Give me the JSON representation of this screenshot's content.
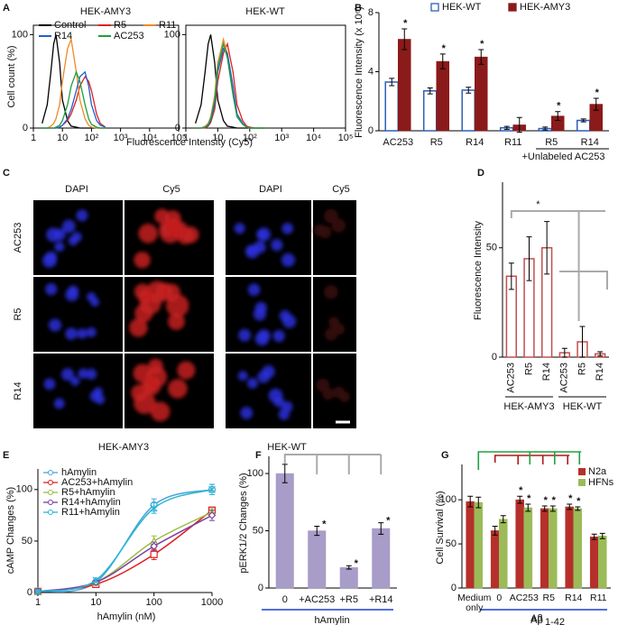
{
  "chart_data": [
    {
      "panel": "A",
      "type": "line",
      "title": "HEK-AMY3",
      "ylabel": "Cell count (%)",
      "xlabel": "Fluorescence Intensity (Cy5)",
      "xlog": true,
      "frame": true,
      "legend": "top",
      "xlim": [
        1,
        100000
      ],
      "xticks": [
        1,
        10,
        {
          "value": 100,
          "label": "10²"
        },
        {
          "value": 1000,
          "label": "10³"
        },
        {
          "value": 10000,
          "label": "10⁴"
        },
        {
          "value": 100000,
          "label": "10⁵"
        }
      ],
      "ylim": [
        0,
        110
      ],
      "yticks": [
        0,
        100
      ],
      "x": [
        2,
        3,
        4,
        5,
        6,
        8,
        10,
        15,
        20,
        30,
        40,
        60,
        80,
        100,
        150,
        200,
        300
      ],
      "series": [
        {
          "name": "Control",
          "color": "#000000",
          "values": [
            5,
            25,
            60,
            90,
            100,
            70,
            30,
            8,
            2,
            1,
            0,
            0,
            0,
            0,
            0,
            0,
            0
          ]
        },
        {
          "name": "R5",
          "color": "#e0201e",
          "values": [
            0,
            0,
            0,
            0,
            0,
            1,
            3,
            8,
            15,
            30,
            45,
            55,
            50,
            40,
            15,
            5,
            1
          ]
        },
        {
          "name": "R11",
          "color": "#f08a24",
          "values": [
            0,
            0,
            2,
            5,
            10,
            25,
            50,
            85,
            95,
            60,
            30,
            10,
            3,
            1,
            0,
            0,
            0
          ]
        },
        {
          "name": "R14",
          "color": "#1f5fd0",
          "values": [
            0,
            0,
            0,
            0,
            0,
            1,
            3,
            10,
            20,
            40,
            55,
            60,
            45,
            25,
            8,
            3,
            1
          ]
        },
        {
          "name": "AC253",
          "color": "#1aa040",
          "values": [
            0,
            0,
            0,
            0,
            1,
            3,
            8,
            25,
            45,
            60,
            50,
            25,
            10,
            4,
            1,
            0,
            0
          ]
        }
      ]
    },
    {
      "panel": null,
      "type": "line",
      "title": "HEK-WT",
      "xlog": true,
      "frame": true,
      "xlim": [
        1,
        100000
      ],
      "xticks": [
        1,
        10,
        {
          "value": 100,
          "label": "10²"
        },
        {
          "value": 1000,
          "label": "10³"
        },
        {
          "value": 10000,
          "label": "10⁴"
        },
        {
          "value": 100000,
          "label": "10⁵"
        }
      ],
      "ylim": [
        0,
        110
      ],
      "yticks": [
        0,
        100
      ],
      "x": [
        2,
        3,
        4,
        5,
        6,
        8,
        10,
        15,
        20,
        30,
        40,
        60,
        80,
        100,
        150,
        200,
        300
      ],
      "series": [
        {
          "name": "Control",
          "color": "#000000",
          "values": [
            5,
            25,
            60,
            90,
            100,
            70,
            30,
            8,
            2,
            1,
            0,
            0,
            0,
            0,
            0,
            0,
            0
          ]
        },
        {
          "name": "R5",
          "color": "#e0201e",
          "values": [
            0,
            0,
            0,
            2,
            6,
            20,
            50,
            80,
            90,
            60,
            25,
            8,
            2,
            1,
            0,
            0,
            0
          ]
        },
        {
          "name": "R11",
          "color": "#f08a24",
          "values": [
            0,
            0,
            2,
            5,
            12,
            35,
            70,
            95,
            80,
            40,
            15,
            5,
            1,
            0,
            0,
            0,
            0
          ]
        },
        {
          "name": "R14",
          "color": "#1f5fd0",
          "values": [
            0,
            0,
            1,
            3,
            8,
            25,
            60,
            85,
            80,
            45,
            15,
            5,
            1,
            0,
            0,
            0,
            0
          ]
        },
        {
          "name": "AC253",
          "color": "#1aa040",
          "values": [
            0,
            0,
            1,
            4,
            10,
            30,
            65,
            90,
            75,
            35,
            12,
            4,
            1,
            0,
            0,
            0,
            0
          ]
        }
      ]
    },
    {
      "panel": "B",
      "type": "bar",
      "ylabel": "Fluorescence Intensity (x 10⁶)",
      "legend": "top",
      "categories": [
        "AC253",
        "R5",
        "R14",
        "R11",
        "R5",
        "R14"
      ],
      "group_label": "+Unlabeled AC253",
      "ylim": [
        0,
        8
      ],
      "yticks": [
        0,
        4,
        8
      ],
      "series": [
        {
          "name": "HEK-WT",
          "color": "#2e5fb5",
          "fill": "#ffffff",
          "values": [
            3.3,
            2.7,
            2.75,
            0.2,
            0.15,
            0.7
          ],
          "errors": [
            0.25,
            0.2,
            0.2,
            0.1,
            0.1,
            0.1
          ]
        },
        {
          "name": "HEK-AMY3",
          "color": "#8b1a1a",
          "values": [
            6.2,
            4.7,
            5.0,
            0.4,
            1.0,
            1.8
          ],
          "errors": [
            0.7,
            0.5,
            0.5,
            0.5,
            0.3,
            0.4
          ],
          "stars": [
            "*",
            "*",
            "*",
            null,
            "*",
            "*"
          ],
          "star_color": "#000000"
        }
      ]
    },
    {
      "panel": "D",
      "type": "bar",
      "ylabel": "Fluorescence Intensity",
      "rotate_labels": true,
      "categories": [
        "AC253",
        "R5",
        "R14",
        "AC253",
        "R5",
        "R14"
      ],
      "groups": [
        "HEK-AMY3",
        "HEK-WT"
      ],
      "annotation": "*",
      "ylim": [
        0,
        80
      ],
      "yticks": [
        0,
        50
      ],
      "series": [
        {
          "color": "#c0504d",
          "fill": "#ffffff",
          "values": [
            37,
            45,
            50,
            2,
            7,
            1.5
          ],
          "errors": [
            6,
            10,
            12,
            2,
            7,
            1
          ]
        }
      ]
    },
    {
      "panel": "E",
      "type": "line",
      "ylabel": "cAMP Changes (%)",
      "xlabel": "hAmylin (nM)",
      "xlog": true,
      "smooth": true,
      "legend": "top-left",
      "xlim": [
        1,
        1000
      ],
      "xticks": [
        1,
        10,
        100,
        1000
      ],
      "ylim": [
        0,
        120
      ],
      "yticks": [
        0,
        50,
        100
      ],
      "x": [
        1,
        10,
        100,
        1000
      ],
      "series": [
        {
          "name": "hAmylin",
          "color": "#4aa3d8",
          "marker": "circle",
          "values": [
            1,
            10,
            85,
            100
          ],
          "errors": [
            0.5,
            2,
            6,
            5
          ]
        },
        {
          "name": "AC253+hAmylin",
          "color": "#e02020",
          "marker": "square",
          "values": [
            1,
            8,
            37,
            80
          ],
          "errors": [
            0.5,
            2,
            5,
            3
          ]
        },
        {
          "name": "R5+hAmylin",
          "color": "#9bbb3c",
          "marker": "triangle",
          "values": [
            1,
            10,
            50,
            78
          ],
          "errors": [
            0.5,
            2,
            5,
            4
          ]
        },
        {
          "name": "R14+hAmylin",
          "color": "#7b3fa0",
          "marker": "diamond",
          "values": [
            1,
            10,
            45,
            75
          ],
          "errors": [
            0.5,
            2,
            4,
            5
          ]
        },
        {
          "name": "R11+hAmylin",
          "color": "#2ab5d5",
          "marker": "x",
          "values": [
            1,
            12,
            82,
            100
          ],
          "errors": [
            0.5,
            2,
            5,
            5
          ]
        }
      ]
    },
    {
      "panel": "F",
      "type": "bar",
      "ylabel": "pERK1/2 Changes (%)",
      "xlabel": "hAmylin",
      "categories": [
        "0",
        "+AC253",
        "+R5",
        "+R14"
      ],
      "ylim": [
        0,
        115
      ],
      "yticks": [
        0,
        50,
        100
      ],
      "series": [
        {
          "color": "#a89cc8",
          "values": [
            100,
            50,
            18,
            52
          ],
          "errors": [
            8,
            4,
            1.5,
            5
          ],
          "stars": [
            null,
            "*",
            "*",
            "*"
          ],
          "star_color": "#000000"
        }
      ]
    },
    {
      "panel": "G",
      "type": "bar",
      "ylabel": "Cell Survival (%)",
      "xlabel": "Aβ",
      "xlabel_sub": "1-42",
      "legend": "top-right",
      "wrap_labels": true,
      "categories": [
        "Medium only",
        "0",
        "AC253",
        "R5",
        "R14",
        "R11"
      ],
      "ylim": [
        0,
        140
      ],
      "yticks": [
        0,
        50,
        100
      ],
      "series": [
        {
          "name": "N2a",
          "color": "#b5302a",
          "values": [
            98,
            65,
            100,
            90,
            92,
            58
          ],
          "errors": [
            6,
            5,
            4,
            3,
            3,
            3
          ],
          "stars": [
            null,
            null,
            "*",
            "*",
            "*",
            null
          ],
          "star_color": "#d01010"
        },
        {
          "name": "HFNs",
          "color": "#9bbb59",
          "values": [
            97,
            78,
            91,
            90,
            90,
            59
          ],
          "errors": [
            6,
            4,
            4,
            3,
            2,
            3
          ],
          "stars": [
            null,
            null,
            "*",
            "*",
            "*",
            null
          ],
          "star_color": "#20a040"
        }
      ]
    }
  ],
  "panel_c": {
    "panel": "C",
    "columns": [
      "DAPI",
      "Cy5",
      "DAPI",
      "Cy5"
    ],
    "rows": [
      "AC253",
      "R5",
      "R14"
    ],
    "groups": [
      "HEK-AMY3",
      "HEK-WT"
    ]
  }
}
